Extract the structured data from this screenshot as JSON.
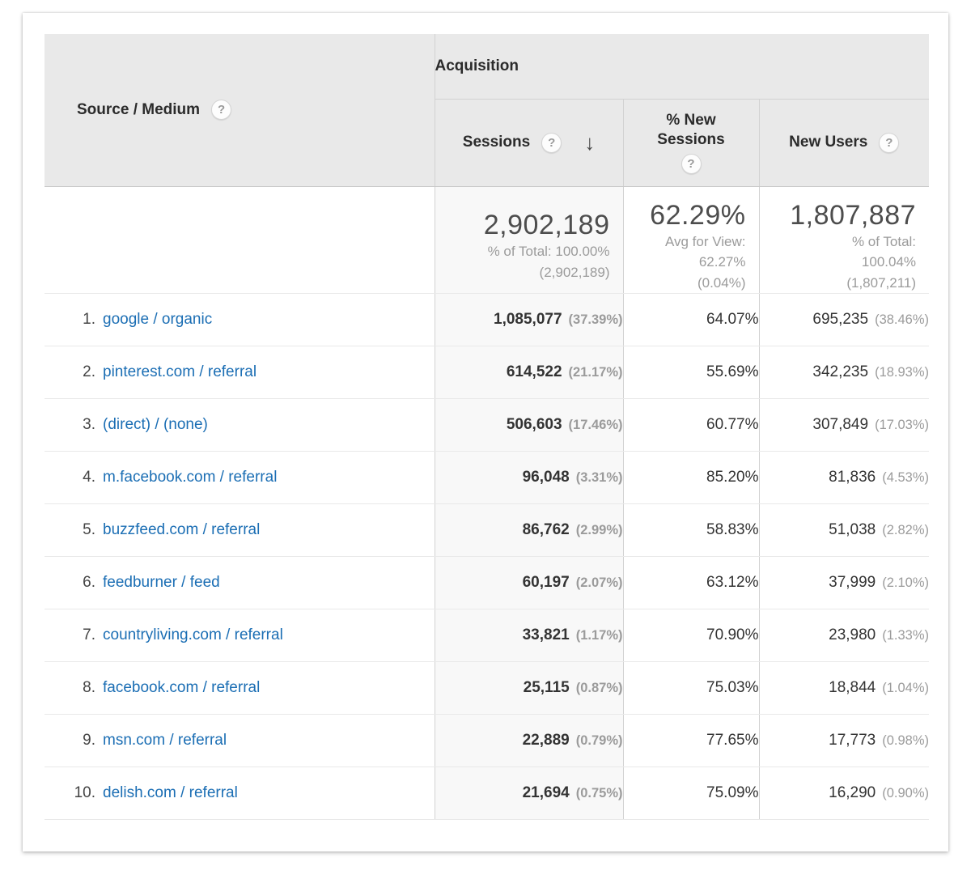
{
  "header": {
    "dimension_label": "Source / Medium",
    "group_label": "Acquisition",
    "help_glyph": "?",
    "sort_arrow": "↓",
    "metrics": [
      {
        "label": "Sessions",
        "sorted": "descending"
      },
      {
        "label": "% New Sessions",
        "sorted": ""
      },
      {
        "label": "New Users",
        "sorted": ""
      }
    ]
  },
  "summary": {
    "sessions": {
      "value": "2,902,189",
      "sub_line1": "% of Total: 100.00%",
      "sub_line2": "(2,902,189)"
    },
    "new_sessions_pct": {
      "value": "62.29%",
      "sub_line1": "Avg for View:",
      "sub_line2": "62.27%",
      "sub_line3": "(0.04%)"
    },
    "new_users": {
      "value": "1,807,887",
      "sub_line1": "% of Total:",
      "sub_line2": "100.04%",
      "sub_line3": "(1,807,211)"
    }
  },
  "rows": [
    {
      "rank": "1.",
      "source": "google / organic",
      "sessions": "1,085,077",
      "sessions_pct": "(37.39%)",
      "new_sessions_pct": "64.07%",
      "new_users": "695,235",
      "new_users_pct": "(38.46%)"
    },
    {
      "rank": "2.",
      "source": "pinterest.com / referral",
      "sessions": "614,522",
      "sessions_pct": "(21.17%)",
      "new_sessions_pct": "55.69%",
      "new_users": "342,235",
      "new_users_pct": "(18.93%)"
    },
    {
      "rank": "3.",
      "source": "(direct) / (none)",
      "sessions": "506,603",
      "sessions_pct": "(17.46%)",
      "new_sessions_pct": "60.77%",
      "new_users": "307,849",
      "new_users_pct": "(17.03%)"
    },
    {
      "rank": "4.",
      "source": "m.facebook.com / referral",
      "sessions": "96,048",
      "sessions_pct": "(3.31%)",
      "new_sessions_pct": "85.20%",
      "new_users": "81,836",
      "new_users_pct": "(4.53%)"
    },
    {
      "rank": "5.",
      "source": "buzzfeed.com / referral",
      "sessions": "86,762",
      "sessions_pct": "(2.99%)",
      "new_sessions_pct": "58.83%",
      "new_users": "51,038",
      "new_users_pct": "(2.82%)"
    },
    {
      "rank": "6.",
      "source": "feedburner / feed",
      "sessions": "60,197",
      "sessions_pct": "(2.07%)",
      "new_sessions_pct": "63.12%",
      "new_users": "37,999",
      "new_users_pct": "(2.10%)"
    },
    {
      "rank": "7.",
      "source": "countryliving.com / referral",
      "sessions": "33,821",
      "sessions_pct": "(1.17%)",
      "new_sessions_pct": "70.90%",
      "new_users": "23,980",
      "new_users_pct": "(1.33%)"
    },
    {
      "rank": "8.",
      "source": "facebook.com / referral",
      "sessions": "25,115",
      "sessions_pct": "(0.87%)",
      "new_sessions_pct": "75.03%",
      "new_users": "18,844",
      "new_users_pct": "(1.04%)"
    },
    {
      "rank": "9.",
      "source": "msn.com / referral",
      "sessions": "22,889",
      "sessions_pct": "(0.79%)",
      "new_sessions_pct": "77.65%",
      "new_users": "17,773",
      "new_users_pct": "(0.98%)"
    },
    {
      "rank": "10.",
      "source": "delish.com / referral",
      "sessions": "21,694",
      "sessions_pct": "(0.75%)",
      "new_sessions_pct": "75.09%",
      "new_users": "16,290",
      "new_users_pct": "(0.90%)"
    }
  ],
  "colors": {
    "link_blue": "#1b6eb4",
    "header_bg": "#e9e9e9",
    "sorted_column_bg": "#f8f8f8",
    "border_gray": "#d2d2d2",
    "secondary_text": "#9b9b9b"
  }
}
